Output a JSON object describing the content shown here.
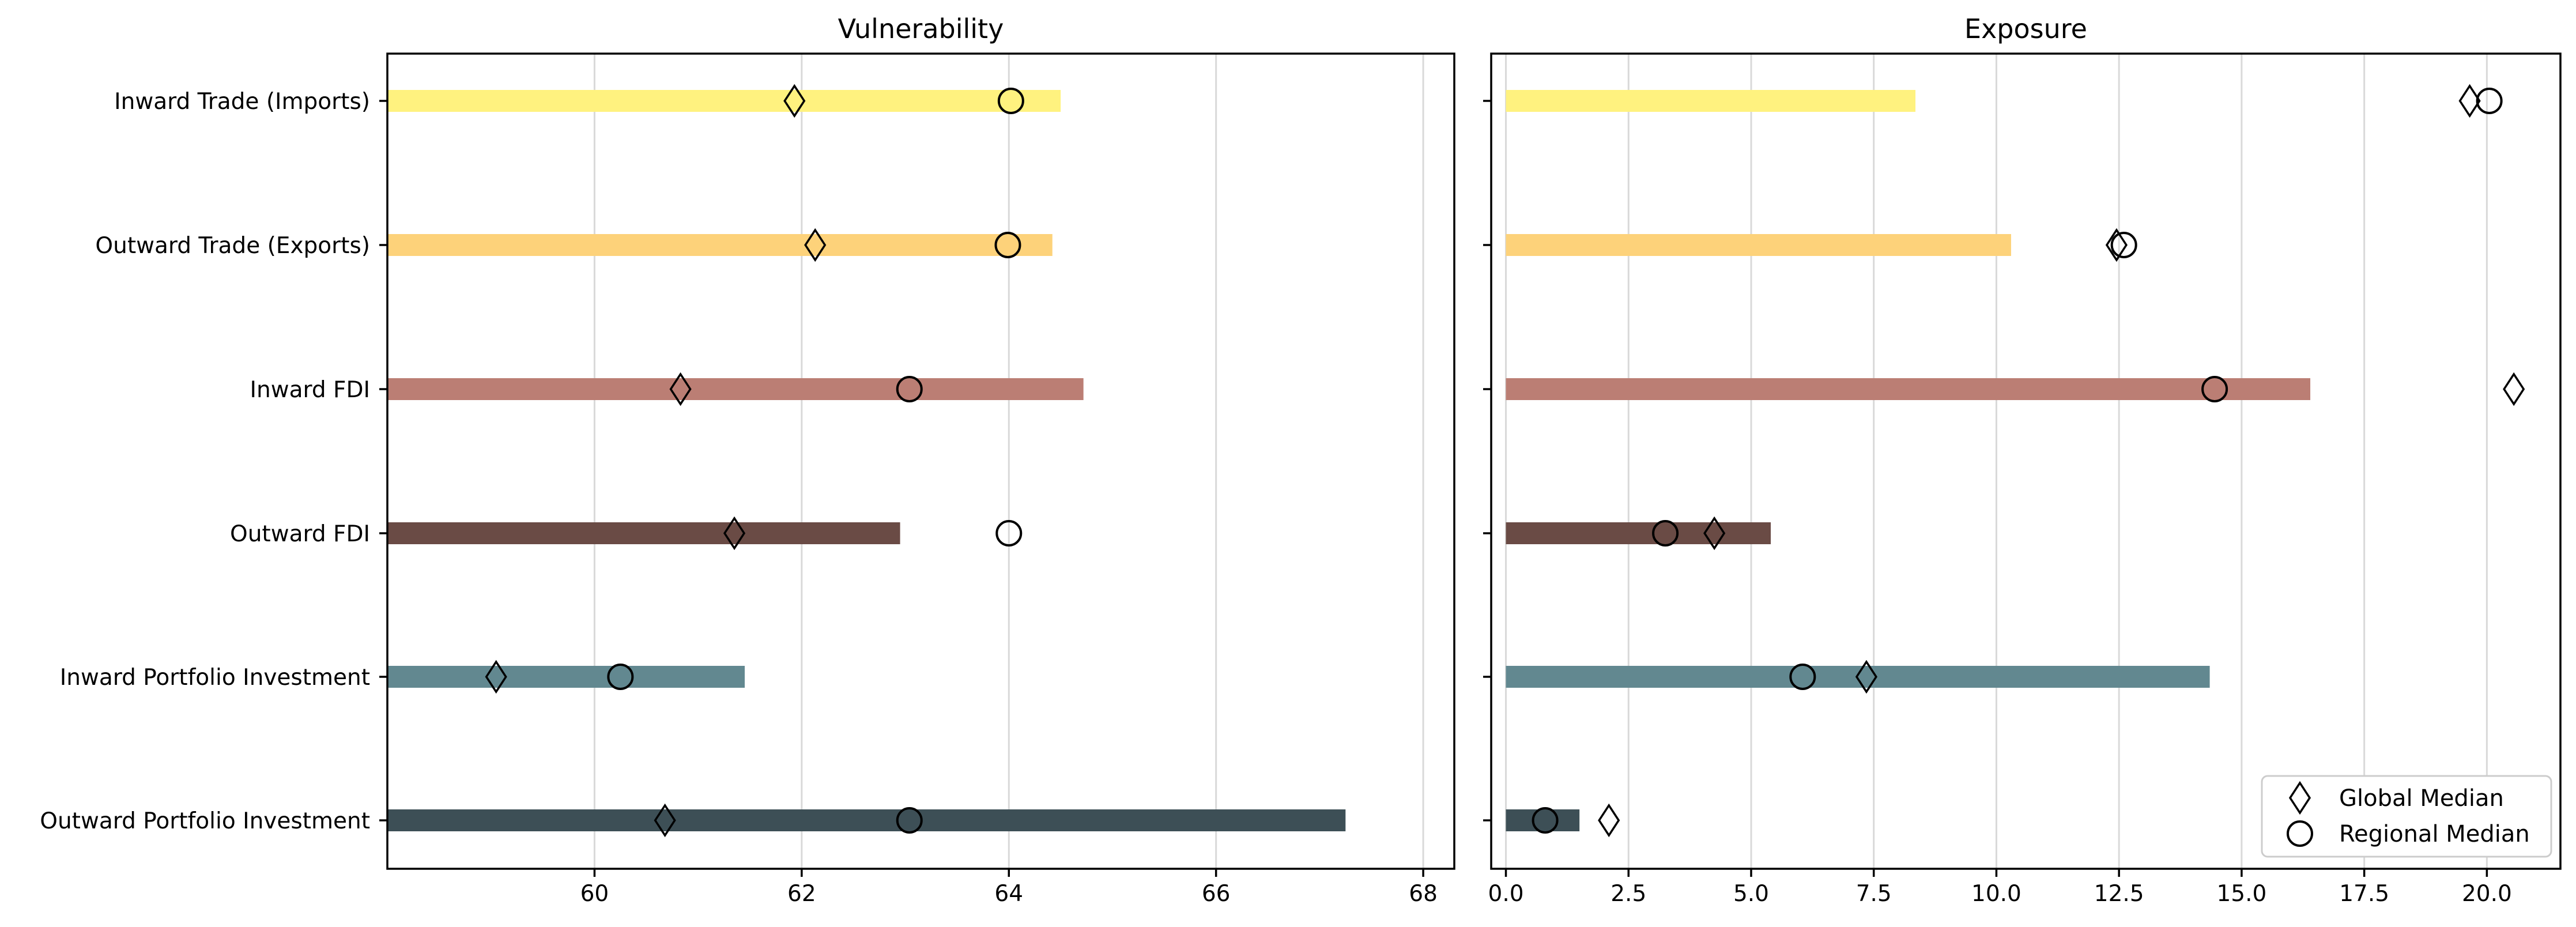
{
  "chart_data": {
    "type": "bar",
    "categories": [
      "Inward Trade (Imports)",
      "Outward Trade (Exports)",
      "Inward FDI",
      "Outward FDI",
      "Inward Portfolio Investment",
      "Outward Portfolio Investment"
    ],
    "colors": [
      "#fff27f",
      "#fdd27a",
      "#bb7e74",
      "#6a4b45",
      "#628890",
      "#3d4f56"
    ],
    "legend": {
      "position": "bottom-right",
      "entries": [
        {
          "label": "Global Median",
          "marker": "diamond"
        },
        {
          "label": "Regional Median",
          "marker": "circle"
        }
      ]
    },
    "panels": [
      {
        "title": "Vulnerability",
        "xlim": [
          58.0,
          68.3
        ],
        "ticks": [
          60,
          62,
          64,
          66,
          68
        ],
        "tick_labels": [
          "60",
          "62",
          "64",
          "66",
          "68"
        ],
        "grid": "vertical",
        "values": [
          64.5,
          64.42,
          64.72,
          62.95,
          61.45,
          67.25
        ],
        "global_median": [
          61.93,
          62.13,
          60.83,
          61.35,
          59.05,
          60.68
        ],
        "regional_median": [
          64.02,
          63.99,
          63.04,
          64.0,
          60.25,
          63.04
        ]
      },
      {
        "title": "Exposure",
        "xlim": [
          -0.3,
          21.5
        ],
        "ticks": [
          0,
          2.5,
          5,
          7.5,
          10,
          12.5,
          15,
          17.5,
          20
        ],
        "tick_labels": [
          "0.0",
          "2.5",
          "5.0",
          "7.5",
          "10.0",
          "12.5",
          "15.0",
          "17.5",
          "20.0"
        ],
        "grid": "vertical",
        "values": [
          8.35,
          10.3,
          16.4,
          5.4,
          14.35,
          1.5
        ],
        "global_median": [
          19.65,
          12.45,
          20.55,
          4.25,
          7.35,
          2.1
        ],
        "regional_median": [
          20.05,
          12.6,
          14.45,
          3.25,
          6.05,
          0.8
        ]
      }
    ]
  }
}
